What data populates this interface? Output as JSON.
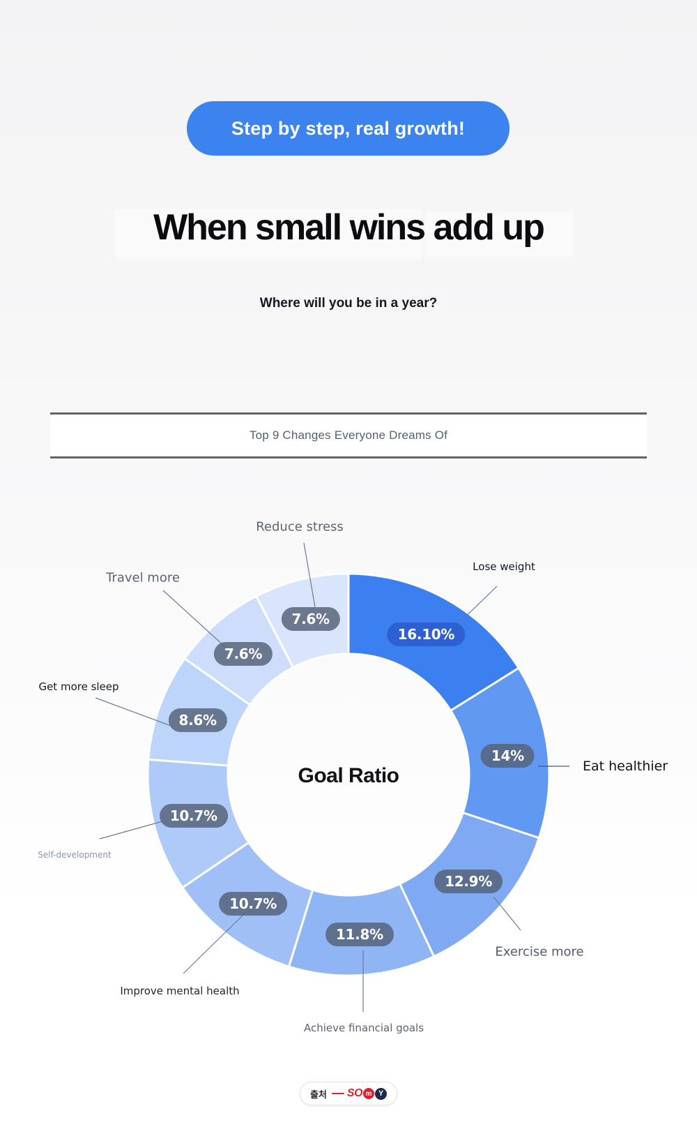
{
  "accent_color": "#3c83f0",
  "header": {
    "badge": "Step by step, real growth!"
  },
  "title": "When small wins add up",
  "subtitle": "Where will you be in a year?",
  "section_box": {
    "label": "Top 9 Changes Everyone Dreams Of"
  },
  "chart_data": {
    "type": "pie",
    "donut": true,
    "center_label": "Goal Ratio",
    "start_angle_deg": -90,
    "direction": "clockwise",
    "legend_position": "around",
    "slices": [
      {
        "label": "Lose weight",
        "value": 16.1,
        "display": "16.10%",
        "color": "#3b7ff0",
        "badge_bg": "rgba(40,84,197,0.72)"
      },
      {
        "label": "Eat healthier",
        "value": 14.0,
        "display": "14%",
        "color": "#6199f2",
        "badge_bg": "rgba(86,99,122,0.84)"
      },
      {
        "label": "Exercise more",
        "value": 12.9,
        "display": "12.9%",
        "color": "#7faaf3",
        "badge_bg": "rgba(86,99,122,0.84)"
      },
      {
        "label": "Achieve financial goals",
        "value": 11.8,
        "display": "11.8%",
        "color": "#8fb5f5",
        "badge_bg": "rgba(86,99,122,0.84)"
      },
      {
        "label": "Improve mental health",
        "value": 10.7,
        "display": "10.7%",
        "color": "#9fbff6",
        "badge_bg": "rgba(86,99,122,0.84)"
      },
      {
        "label": "Self-development",
        "value": 10.7,
        "display": "10.7%",
        "color": "#adcaf8",
        "badge_bg": "rgba(86,99,122,0.84)"
      },
      {
        "label": "Get more sleep",
        "value": 8.6,
        "display": "8.6%",
        "color": "#bdd5fa",
        "badge_bg": "rgba(86,99,122,0.84)"
      },
      {
        "label": "Travel more",
        "value": 7.6,
        "display": "7.6%",
        "color": "#cdddfb",
        "badge_bg": "rgba(86,99,122,0.84)"
      },
      {
        "label": "Reduce stress",
        "value": 7.6,
        "display": "7.6%",
        "color": "#d9e5fc",
        "badge_bg": "rgba(86,99,122,0.84)"
      }
    ]
  },
  "footer": {
    "source_label": "출처",
    "logo_text": "SOmY"
  }
}
